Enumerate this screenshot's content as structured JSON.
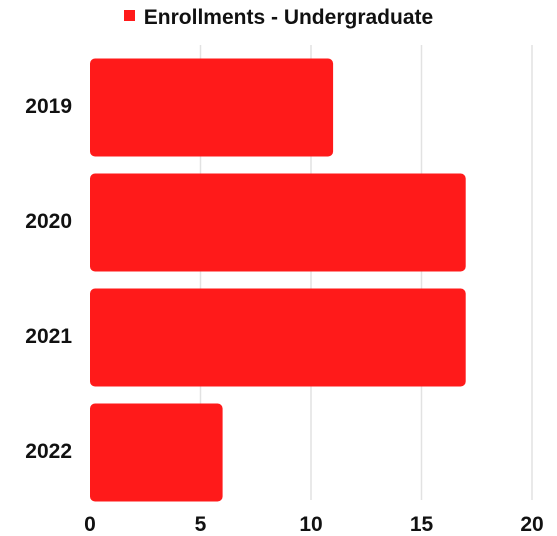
{
  "chart_data": {
    "type": "bar",
    "orientation": "horizontal",
    "categories": [
      "2019",
      "2020",
      "2021",
      "2022"
    ],
    "series": [
      {
        "name": "Enrollments - Undergraduate",
        "values": [
          11,
          17,
          17,
          6
        ],
        "color": "#ff1a1a"
      }
    ],
    "xlim": [
      0,
      20
    ],
    "xticks": [
      0,
      5,
      10,
      15,
      20
    ],
    "grid": "vertical",
    "legend_position": "top-center",
    "title": "",
    "xlabel": "",
    "ylabel": ""
  }
}
